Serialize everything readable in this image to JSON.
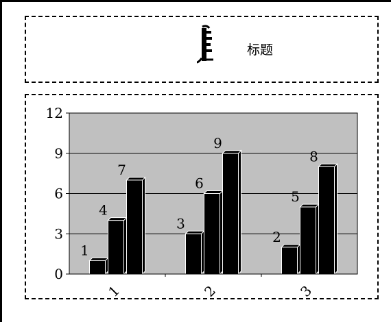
{
  "title_text": "标题",
  "chart_data": {
    "type": "bar",
    "title": "标题",
    "categories": [
      "1",
      "2",
      "3"
    ],
    "series": [
      {
        "values": [
          1,
          3,
          2
        ]
      },
      {
        "values": [
          4,
          6,
          5
        ]
      },
      {
        "values": [
          7,
          9,
          8
        ]
      }
    ],
    "y_ticks": [
      "0",
      "3",
      "6",
      "9",
      "12"
    ],
    "ylim": [
      0,
      12
    ],
    "grid": true,
    "plot_background": "#c0c0c0",
    "bar_color": "#000000",
    "legend": "none",
    "xlabel": "",
    "ylabel": ""
  }
}
